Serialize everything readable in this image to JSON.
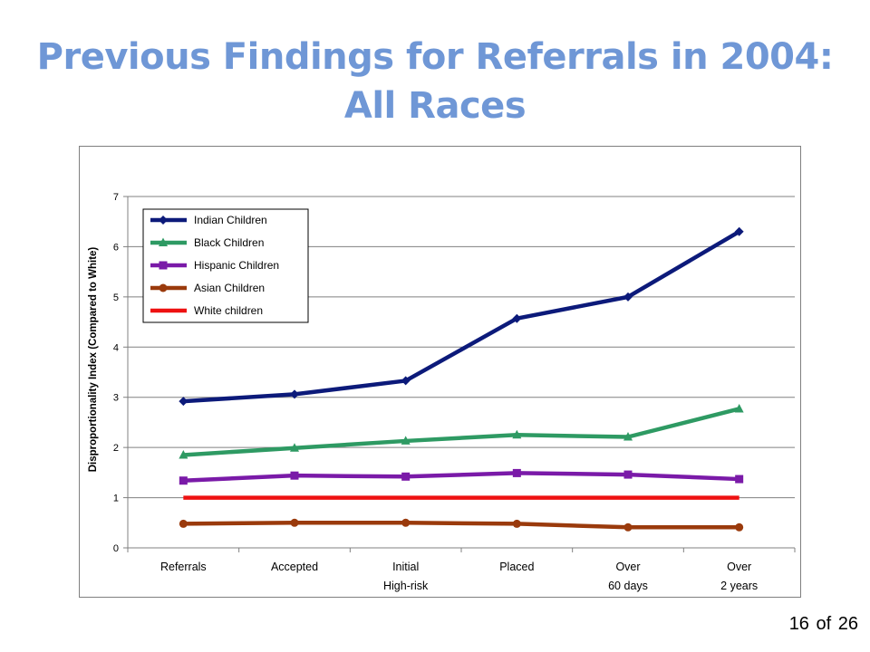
{
  "slide": {
    "title_line1": "Previous Findings for Referrals in 2004:",
    "title_line2": "All Races",
    "page_current": "16",
    "page_of": "of",
    "page_total": "26"
  },
  "chart_data": {
    "type": "line",
    "title": "",
    "xlabel": "",
    "ylabel": "Disproportionality Index (Compared to White)",
    "ylim": [
      0,
      7
    ],
    "yticks": [
      0,
      1,
      2,
      3,
      4,
      5,
      6,
      7
    ],
    "grid": true,
    "legend": "top-left",
    "categories": [
      [
        "Referrals",
        ""
      ],
      [
        "Accepted",
        ""
      ],
      [
        "Initial",
        "High-risk"
      ],
      [
        "Placed",
        ""
      ],
      [
        "Over",
        "60 days"
      ],
      [
        "Over",
        "2 years"
      ]
    ],
    "series": [
      {
        "name": "Indian Children",
        "color": "#0c1a7a",
        "marker": "diamond",
        "values": [
          2.92,
          3.06,
          3.33,
          4.57,
          5.0,
          6.3
        ]
      },
      {
        "name": "Black Children",
        "color": "#2e9a63",
        "marker": "triangle",
        "values": [
          1.85,
          1.99,
          2.13,
          2.25,
          2.21,
          2.77
        ]
      },
      {
        "name": "Hispanic Children",
        "color": "#7a1aa8",
        "marker": "square",
        "values": [
          1.34,
          1.44,
          1.42,
          1.49,
          1.46,
          1.37
        ]
      },
      {
        "name": "Asian Children",
        "color": "#9a3a0c",
        "marker": "circle",
        "values": [
          0.48,
          0.5,
          0.5,
          0.48,
          0.41,
          0.41
        ]
      },
      {
        "name": "White children",
        "color": "#ee1111",
        "marker": "none",
        "values": [
          1,
          1,
          1,
          1,
          1,
          1
        ]
      }
    ]
  }
}
